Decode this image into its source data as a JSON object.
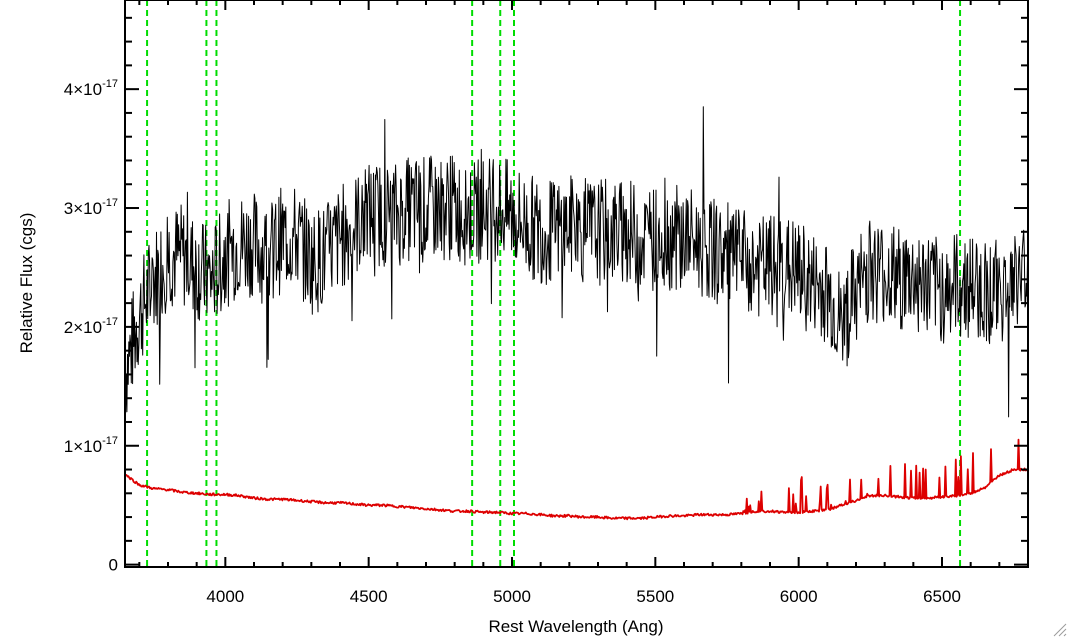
{
  "chart_data": {
    "type": "line",
    "title": "",
    "xlabel": "Rest Wavelength (Ang)",
    "ylabel": "Relative Flux (cgs)",
    "xlim": [
      3650,
      6800
    ],
    "ylim": [
      -2e-19,
      4.75e-17
    ],
    "x_ticks": [
      4000,
      4500,
      5000,
      5500,
      6000,
      6500
    ],
    "x_tick_labels": [
      "4000",
      "4500",
      "5000",
      "5500",
      "6000",
      "6500"
    ],
    "y_ticks": [
      0,
      1e-17,
      2e-17,
      3e-17,
      4e-17
    ],
    "y_tick_labels": [
      {
        "mantissa": "0",
        "exponent": ""
      },
      {
        "mantissa": "1×10",
        "exponent": "-17"
      },
      {
        "mantissa": "2×10",
        "exponent": "-17"
      },
      {
        "mantissa": "3×10",
        "exponent": "-17"
      },
      {
        "mantissa": "4×10",
        "exponent": "-17"
      }
    ],
    "grid": false,
    "line_markers": {
      "color": "#00dd00",
      "style": "dashed",
      "x": [
        3727,
        3934,
        3969,
        4861,
        4959,
        5007,
        6563
      ]
    },
    "series": [
      {
        "color": "#000000",
        "style": "noisy-line",
        "x": [
          3650,
          3700,
          3750,
          3800,
          3850,
          3900,
          3950,
          4000,
          4050,
          4100,
          4150,
          4200,
          4250,
          4300,
          4350,
          4400,
          4450,
          4500,
          4550,
          4600,
          4650,
          4700,
          4750,
          4800,
          4850,
          4900,
          4950,
          5000,
          5050,
          5100,
          5150,
          5200,
          5250,
          5300,
          5350,
          5400,
          5450,
          5500,
          5550,
          5600,
          5650,
          5700,
          5750,
          5800,
          5850,
          5900,
          5950,
          6000,
          6050,
          6100,
          6150,
          6200,
          6250,
          6300,
          6350,
          6400,
          6450,
          6500,
          6550,
          6600,
          6650,
          6700,
          6750,
          6800
        ],
        "y": [
          1.6e-17,
          2.1e-17,
          2.4e-17,
          2.6e-17,
          2.6e-17,
          2.5e-17,
          2.4e-17,
          2.6e-17,
          2.7e-17,
          2.7e-17,
          2.6e-17,
          2.75e-17,
          2.75e-17,
          2.55e-17,
          2.6e-17,
          2.75e-17,
          2.85e-17,
          2.95e-17,
          2.95e-17,
          2.95e-17,
          3e-17,
          3e-17,
          3e-17,
          3e-17,
          2.95e-17,
          3e-17,
          3e-17,
          2.95e-17,
          2.85e-17,
          2.8e-17,
          2.8e-17,
          2.85e-17,
          2.8e-17,
          2.8e-17,
          2.8e-17,
          2.8e-17,
          2.75e-17,
          2.75e-17,
          2.75e-17,
          2.75e-17,
          2.7e-17,
          2.65e-17,
          2.6e-17,
          2.55e-17,
          2.5e-17,
          2.5e-17,
          2.5e-17,
          2.45e-17,
          2.35e-17,
          2.3e-17,
          2e-17,
          2.3e-17,
          2.5e-17,
          2.45e-17,
          2.4e-17,
          2.4e-17,
          2.35e-17,
          2.3e-17,
          2.35e-17,
          2.35e-17,
          2.3e-17,
          2.3e-17,
          2.35e-17,
          2.5e-17
        ]
      },
      {
        "color": "#dd0000",
        "style": "line",
        "x": [
          3650,
          3700,
          3750,
          3800,
          3850,
          3900,
          3950,
          4000,
          4050,
          4100,
          4150,
          4200,
          4250,
          4300,
          4350,
          4400,
          4450,
          4500,
          4550,
          4600,
          4650,
          4700,
          4750,
          4800,
          4850,
          4900,
          4950,
          5000,
          5050,
          5100,
          5150,
          5200,
          5250,
          5300,
          5350,
          5400,
          5450,
          5500,
          5550,
          5600,
          5650,
          5700,
          5750,
          5800,
          5850,
          5900,
          5950,
          6000,
          6050,
          6100,
          6150,
          6200,
          6250,
          6300,
          6350,
          6400,
          6450,
          6500,
          6550,
          6600,
          6650,
          6700,
          6750,
          6800
        ],
        "y": [
          7.6e-18,
          6.7e-18,
          6.4e-18,
          6.3e-18,
          6.1e-18,
          6e-18,
          5.9e-18,
          5.9e-18,
          5.8e-18,
          5.6e-18,
          5.5e-18,
          5.5e-18,
          5.4e-18,
          5.3e-18,
          5.2e-18,
          5.2e-18,
          5.1e-18,
          5e-18,
          5e-18,
          4.9e-18,
          4.8e-18,
          4.7e-18,
          4.6e-18,
          4.5e-18,
          4.5e-18,
          4.4e-18,
          4.4e-18,
          4.3e-18,
          4.3e-18,
          4.2e-18,
          4.1e-18,
          4.1e-18,
          4e-18,
          4e-18,
          3.9e-18,
          3.9e-18,
          3.9e-18,
          4e-18,
          4.1e-18,
          4.1e-18,
          4.2e-18,
          4.2e-18,
          4.2e-18,
          4.3e-18,
          4.5e-18,
          4.5e-18,
          4.4e-18,
          4.4e-18,
          4.5e-18,
          4.6e-18,
          5e-18,
          5.4e-18,
          5.8e-18,
          5.8e-18,
          5.7e-18,
          5.6e-18,
          5.6e-18,
          5.7e-18,
          5.8e-18,
          6e-18,
          6.5e-18,
          7.5e-18,
          8e-18,
          8e-18
        ]
      }
    ]
  }
}
